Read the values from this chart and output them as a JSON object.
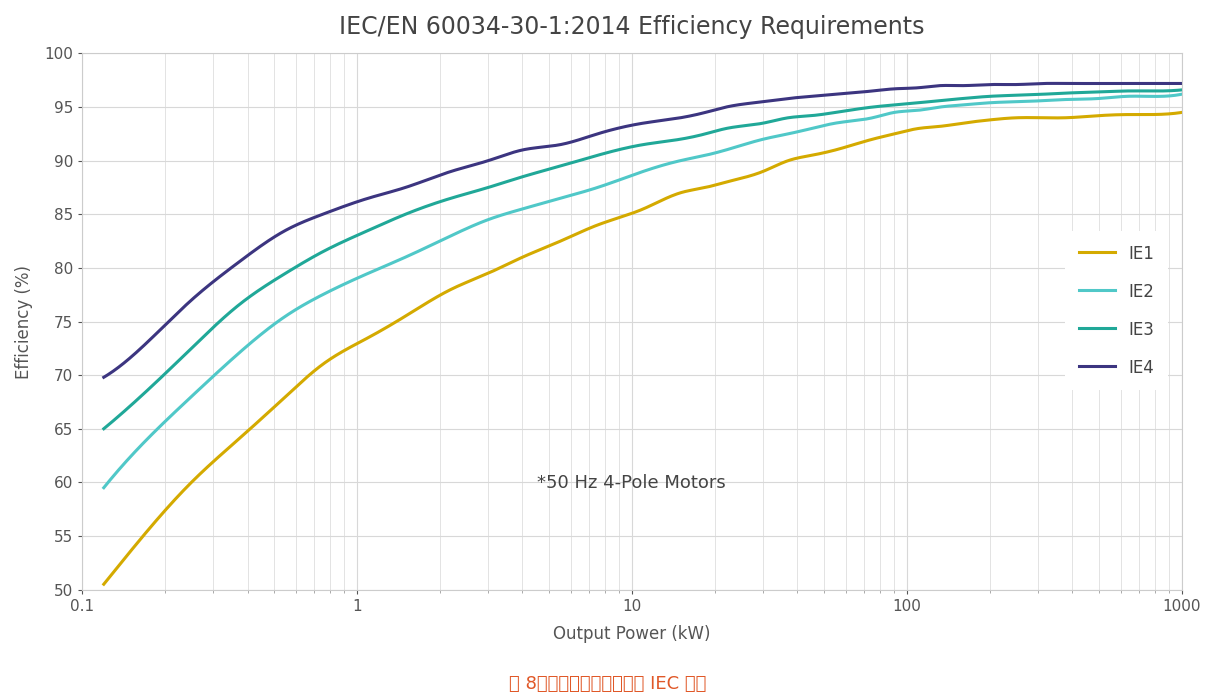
{
  "title": "IEC/EN 60034-30-1:2014 Efficiency Requirements",
  "xlabel": "Output Power (kW)",
  "ylabel": "Efficiency (%)",
  "annotation": "*50 Hz 4-Pole Motors",
  "caption": "图 8：针对工业电机驱动的 IEC 标准",
  "xlim_log": [
    0.1,
    1000
  ],
  "ylim": [
    50,
    100
  ],
  "yticks": [
    50,
    55,
    60,
    65,
    70,
    75,
    80,
    85,
    90,
    95,
    100
  ],
  "background_color": "#ffffff",
  "plot_bg_color": "#ffffff",
  "grid_color": "#d8d8d8",
  "series": [
    {
      "label": "IE1",
      "color": "#d4aa00",
      "x_points": [
        0.12,
        0.18,
        0.25,
        0.37,
        0.55,
        0.75,
        1.1,
        1.5,
        2.2,
        3.0,
        4.0,
        5.5,
        7.5,
        11,
        15,
        18.5,
        22,
        30,
        37,
        45,
        55,
        75,
        90,
        110,
        132,
        160,
        200,
        250,
        315,
        375,
        500,
        630,
        750,
        1000
      ],
      "y_points": [
        50.5,
        56,
        60,
        64,
        68,
        71,
        73.5,
        75.5,
        78,
        79.5,
        81,
        82.5,
        84,
        85.5,
        87,
        87.5,
        88,
        89,
        90,
        90.5,
        91,
        92,
        92.5,
        93,
        93.2,
        93.5,
        93.8,
        94,
        94,
        94,
        94.2,
        94.3,
        94.3,
        94.5
      ]
    },
    {
      "label": "IE2",
      "color": "#50c8c8",
      "x_points": [
        0.12,
        0.18,
        0.25,
        0.37,
        0.55,
        0.75,
        1.1,
        1.5,
        2.2,
        3.0,
        4.0,
        5.5,
        7.5,
        11,
        15,
        18.5,
        22,
        30,
        37,
        45,
        55,
        75,
        90,
        110,
        132,
        160,
        200,
        250,
        315,
        375,
        500,
        630,
        750,
        1000
      ],
      "y_points": [
        59.5,
        64.5,
        68,
        72,
        75.5,
        77.5,
        79.5,
        81,
        83,
        84.5,
        85.5,
        86.5,
        87.5,
        89,
        90,
        90.5,
        91,
        92,
        92.5,
        93,
        93.5,
        94,
        94.5,
        94.7,
        95,
        95.2,
        95.4,
        95.5,
        95.6,
        95.7,
        95.8,
        96.0,
        96.0,
        96.2
      ]
    },
    {
      "label": "IE3",
      "color": "#20a898",
      "x_points": [
        0.12,
        0.18,
        0.25,
        0.37,
        0.55,
        0.75,
        1.1,
        1.5,
        2.2,
        3.0,
        4.0,
        5.5,
        7.5,
        11,
        15,
        18.5,
        22,
        30,
        37,
        45,
        55,
        75,
        90,
        110,
        132,
        160,
        200,
        250,
        315,
        375,
        500,
        630,
        750,
        1000
      ],
      "y_points": [
        65.0,
        69,
        72.5,
        76.5,
        79.5,
        81.5,
        83.5,
        85,
        86.5,
        87.5,
        88.5,
        89.5,
        90.5,
        91.5,
        92,
        92.5,
        93,
        93.5,
        94,
        94.2,
        94.5,
        95,
        95.2,
        95.4,
        95.6,
        95.8,
        96,
        96.1,
        96.2,
        96.3,
        96.4,
        96.5,
        96.5,
        96.6
      ]
    },
    {
      "label": "IE4",
      "color": "#3c3580",
      "x_points": [
        0.12,
        0.18,
        0.25,
        0.37,
        0.55,
        0.75,
        1.1,
        1.5,
        2.2,
        3.0,
        4.0,
        5.5,
        7.5,
        11,
        15,
        18.5,
        22,
        30,
        37,
        45,
        55,
        75,
        90,
        110,
        132,
        160,
        200,
        250,
        315,
        375,
        500,
        630,
        750,
        1000
      ],
      "y_points": [
        69.8,
        73.5,
        77,
        80.5,
        83.5,
        85.0,
        86.5,
        87.5,
        89,
        90,
        91,
        91.5,
        92.5,
        93.5,
        94.0,
        94.5,
        95.0,
        95.5,
        95.8,
        96.0,
        96.2,
        96.5,
        96.7,
        96.8,
        97.0,
        97.0,
        97.1,
        97.1,
        97.2,
        97.2,
        97.2,
        97.2,
        97.2,
        97.2
      ]
    }
  ],
  "title_fontsize": 17,
  "axis_label_fontsize": 12,
  "tick_fontsize": 11,
  "legend_fontsize": 12,
  "annotation_fontsize": 13,
  "caption_fontsize": 13,
  "caption_color": "#e05828",
  "line_width": 2.2
}
